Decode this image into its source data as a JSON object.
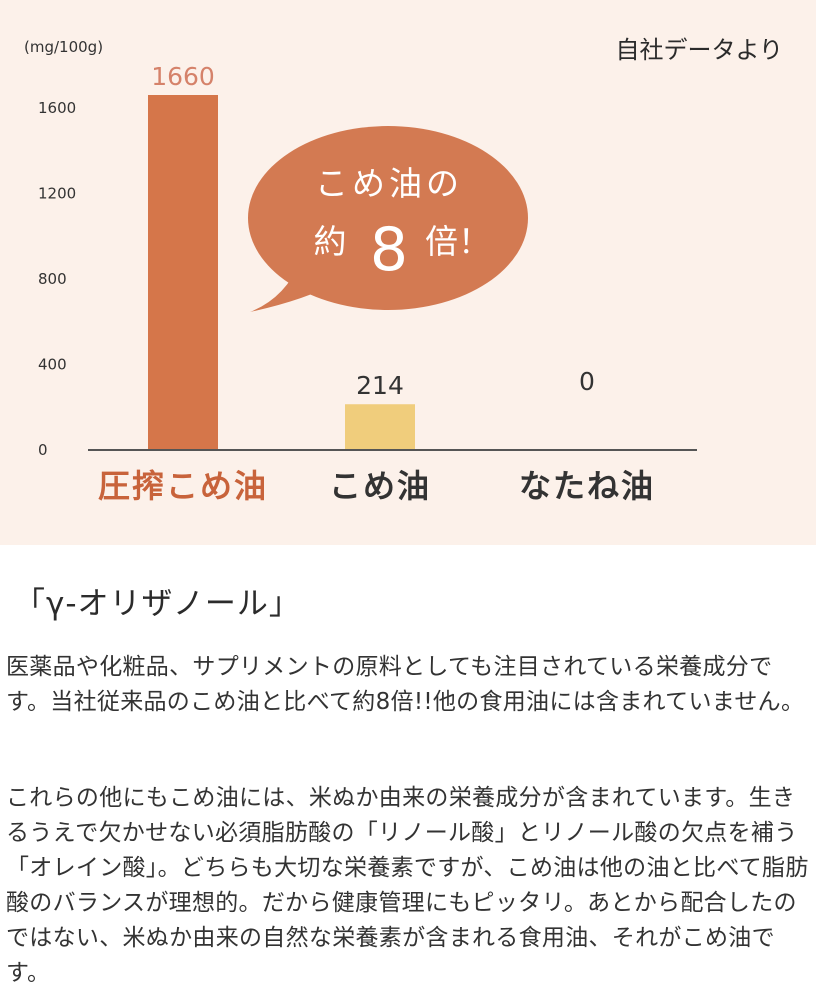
{
  "chart_data": {
    "type": "bar",
    "ylabel": "(mg/100g)",
    "source_note": "自社データより",
    "ylim": [
      0,
      1800
    ],
    "yticks": [
      0,
      400,
      800,
      1200,
      1600
    ],
    "categories": [
      "圧搾こめ油",
      "こめ油",
      "なたね油"
    ],
    "values": [
      1660,
      214,
      0
    ],
    "value_labels": [
      "1660",
      "214",
      "0"
    ],
    "colors": [
      "#d5764a",
      "#f0cd7c",
      "#d5764a"
    ],
    "category_colors": [
      "#c8633b",
      "#333333",
      "#333333"
    ],
    "callout": {
      "line1": "こめ油の",
      "line2_pre": "約",
      "line2_num": "8",
      "line2_post": "倍！",
      "color": "#d37a52"
    }
  },
  "section": {
    "title": "「γ-オリザノール」",
    "paragraph1": "医薬品や化粧品、サプリメントの原料としても注目されている栄養成分です。当社従来品のこめ油と比べて約8倍!!他の食用油には含まれていません。",
    "paragraph2": "これらの他にもこめ油には、米ぬか由来の栄養成分が含まれています。生きるうえで欠かせない必須脂肪酸の「リノール酸」とリノール酸の欠点を補う「オレイン酸」。どちらも大切な栄養素ですが、こめ油は他の油と比べて脂肪酸のバランスが理想的。だから健康管理にもピッタリ。あとから配合したのではない、米ぬか由来の自然な栄養素が含まれる食用油、それがこめ油です。"
  }
}
